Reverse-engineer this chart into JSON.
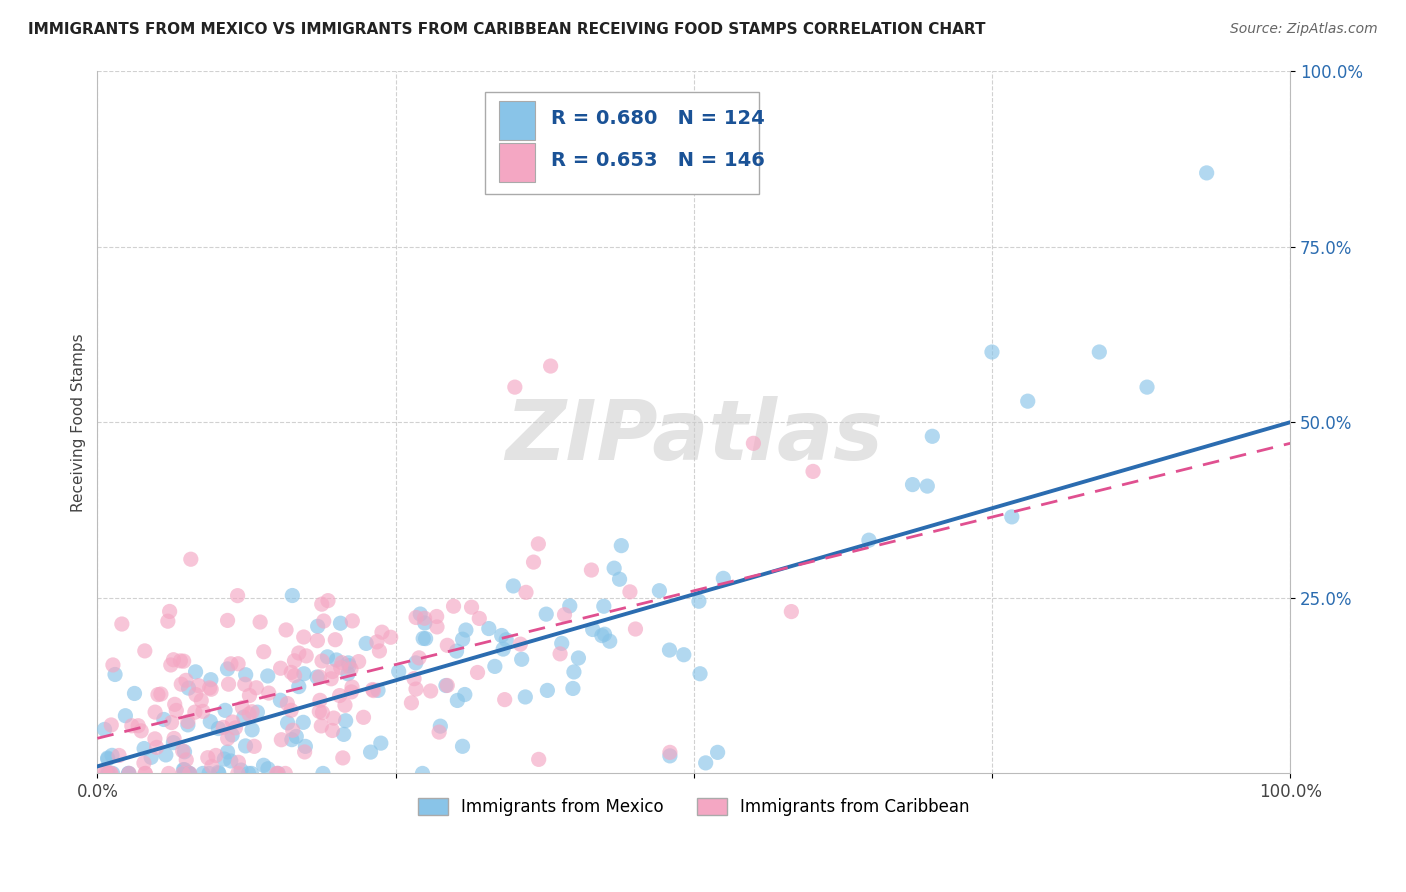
{
  "title": "IMMIGRANTS FROM MEXICO VS IMMIGRANTS FROM CARIBBEAN RECEIVING FOOD STAMPS CORRELATION CHART",
  "source": "Source: ZipAtlas.com",
  "ylabel": "Receiving Food Stamps",
  "xlabel": "",
  "xlim": [
    0.0,
    1.0
  ],
  "ylim": [
    0.0,
    1.0
  ],
  "blue_R": 0.68,
  "blue_N": 124,
  "pink_R": 0.653,
  "pink_N": 146,
  "blue_color": "#89c4e8",
  "pink_color": "#f4a7c3",
  "blue_line_color": "#2b6cb0",
  "pink_line_color": "#e05090",
  "watermark": "ZIPatlas",
  "legend_label_blue": "Immigrants from Mexico",
  "legend_label_pink": "Immigrants from Caribbean",
  "background_color": "#ffffff",
  "grid_color": "#cccccc",
  "title_color": "#222222",
  "stats_text_color": "#1a5296",
  "ytick_color": "#2b6cb0",
  "blue_line_end_y": 0.5,
  "pink_line_end_y": 0.47,
  "blue_line_start_y": 0.01,
  "pink_line_start_y": 0.05
}
